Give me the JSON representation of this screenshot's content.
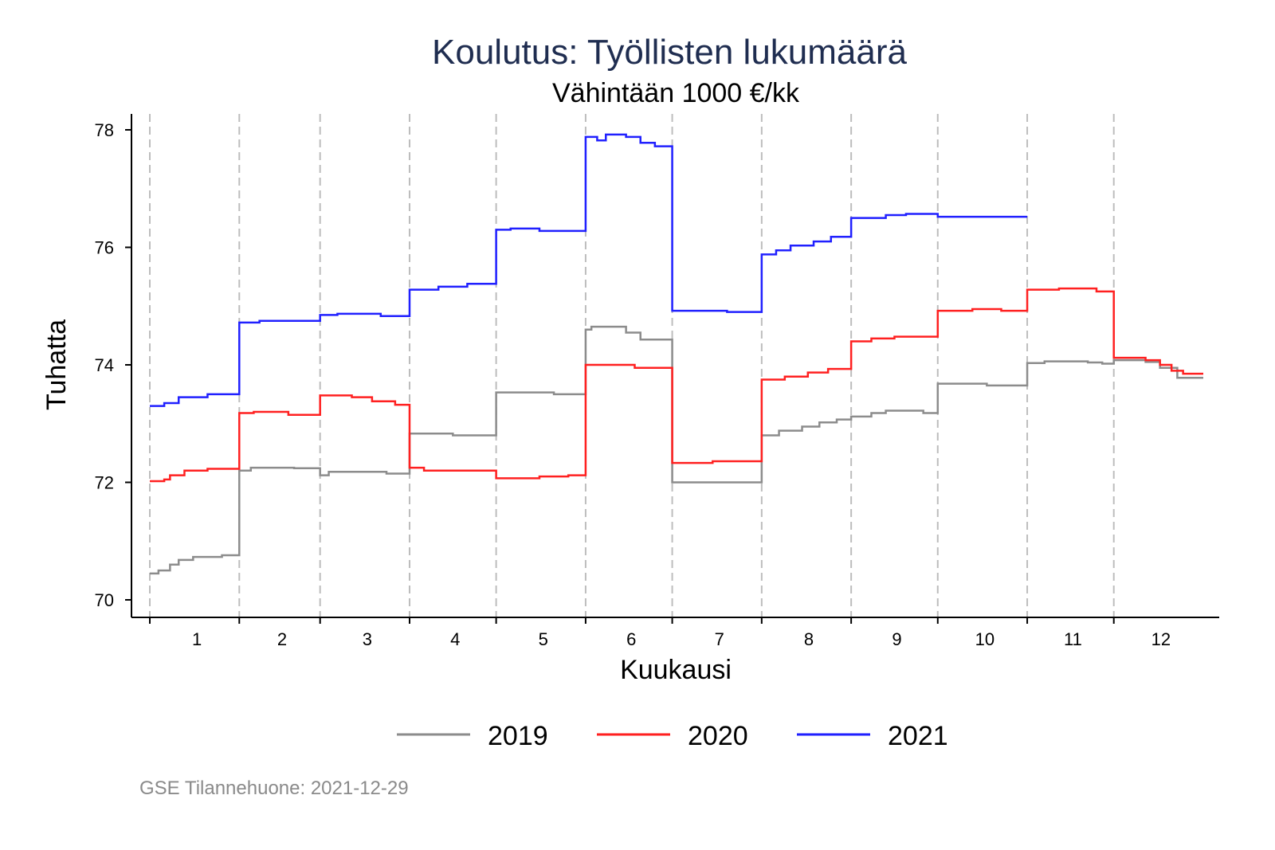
{
  "chart_data": {
    "type": "line",
    "title": "Koulutus: Työllisten lukumäärä",
    "subtitle": "Vähintään 1000 €/kk",
    "xlabel": "Kuukausi",
    "ylabel": "Tuhatta",
    "ylim": [
      70,
      78
    ],
    "yticks": [
      "70",
      "72",
      "74",
      "76",
      "78"
    ],
    "xlim_days": [
      0,
      365
    ],
    "month_boundaries": [
      0,
      31,
      59,
      90,
      120,
      151,
      181,
      212,
      243,
      273,
      304,
      334,
      365
    ],
    "categories": [
      "1",
      "2",
      "3",
      "4",
      "5",
      "6",
      "7",
      "8",
      "9",
      "10",
      "11",
      "12"
    ],
    "legend_position": "bottom",
    "grid": "vertical dashed at month boundaries",
    "series": [
      {
        "name": "2019",
        "color": "#8c8c8c",
        "steps": [
          [
            0,
            70.45
          ],
          [
            3,
            70.5
          ],
          [
            7,
            70.6
          ],
          [
            10,
            70.68
          ],
          [
            15,
            70.73
          ],
          [
            25,
            70.76
          ],
          [
            31,
            72.2
          ],
          [
            35,
            72.25
          ],
          [
            50,
            72.24
          ],
          [
            59,
            72.12
          ],
          [
            62,
            72.18
          ],
          [
            82,
            72.15
          ],
          [
            90,
            72.83
          ],
          [
            105,
            72.8
          ],
          [
            120,
            73.53
          ],
          [
            140,
            73.5
          ],
          [
            151,
            74.6
          ],
          [
            153,
            74.65
          ],
          [
            165,
            74.55
          ],
          [
            170,
            74.43
          ],
          [
            181,
            72.0
          ],
          [
            212,
            72.8
          ],
          [
            218,
            72.88
          ],
          [
            226,
            72.95
          ],
          [
            232,
            73.02
          ],
          [
            238,
            73.07
          ],
          [
            243,
            73.12
          ],
          [
            250,
            73.18
          ],
          [
            255,
            73.22
          ],
          [
            268,
            73.18
          ],
          [
            273,
            73.68
          ],
          [
            290,
            73.65
          ],
          [
            304,
            74.03
          ],
          [
            310,
            74.06
          ],
          [
            325,
            74.04
          ],
          [
            330,
            74.02
          ],
          [
            334,
            74.08
          ],
          [
            345,
            74.05
          ],
          [
            350,
            73.95
          ],
          [
            356,
            73.78
          ],
          [
            365,
            73.78
          ]
        ]
      },
      {
        "name": "2020",
        "color": "#ff2020",
        "steps": [
          [
            0,
            72.02
          ],
          [
            5,
            72.05
          ],
          [
            7,
            72.12
          ],
          [
            12,
            72.2
          ],
          [
            20,
            72.23
          ],
          [
            31,
            73.18
          ],
          [
            36,
            73.2
          ],
          [
            48,
            73.15
          ],
          [
            59,
            73.48
          ],
          [
            70,
            73.45
          ],
          [
            77,
            73.38
          ],
          [
            85,
            73.32
          ],
          [
            90,
            72.25
          ],
          [
            95,
            72.2
          ],
          [
            120,
            72.07
          ],
          [
            135,
            72.1
          ],
          [
            145,
            72.12
          ],
          [
            151,
            74.0
          ],
          [
            168,
            73.95
          ],
          [
            181,
            72.33
          ],
          [
            195,
            72.36
          ],
          [
            212,
            73.75
          ],
          [
            220,
            73.8
          ],
          [
            228,
            73.87
          ],
          [
            235,
            73.93
          ],
          [
            243,
            74.4
          ],
          [
            250,
            74.45
          ],
          [
            258,
            74.48
          ],
          [
            273,
            74.92
          ],
          [
            285,
            74.95
          ],
          [
            295,
            74.92
          ],
          [
            304,
            75.28
          ],
          [
            315,
            75.3
          ],
          [
            328,
            75.25
          ],
          [
            334,
            74.12
          ],
          [
            345,
            74.08
          ],
          [
            350,
            74.0
          ],
          [
            354,
            73.9
          ],
          [
            358,
            73.85
          ],
          [
            365,
            73.85
          ]
        ]
      },
      {
        "name": "2021",
        "color": "#2020ff",
        "steps": [
          [
            0,
            73.3
          ],
          [
            5,
            73.35
          ],
          [
            10,
            73.45
          ],
          [
            20,
            73.5
          ],
          [
            31,
            74.72
          ],
          [
            38,
            74.75
          ],
          [
            59,
            74.85
          ],
          [
            65,
            74.87
          ],
          [
            80,
            74.83
          ],
          [
            90,
            75.28
          ],
          [
            100,
            75.33
          ],
          [
            110,
            75.38
          ],
          [
            120,
            76.3
          ],
          [
            125,
            76.32
          ],
          [
            135,
            76.28
          ],
          [
            151,
            77.88
          ],
          [
            155,
            77.82
          ],
          [
            158,
            77.92
          ],
          [
            165,
            77.88
          ],
          [
            170,
            77.78
          ],
          [
            175,
            77.72
          ],
          [
            181,
            74.92
          ],
          [
            200,
            74.9
          ],
          [
            212,
            75.88
          ],
          [
            217,
            75.95
          ],
          [
            222,
            76.03
          ],
          [
            230,
            76.1
          ],
          [
            236,
            76.18
          ],
          [
            243,
            76.5
          ],
          [
            255,
            76.55
          ],
          [
            262,
            76.57
          ],
          [
            273,
            76.52
          ],
          [
            304,
            76.52
          ]
        ]
      }
    ]
  },
  "footer": "GSE Tilannehuone: 2021-12-29"
}
